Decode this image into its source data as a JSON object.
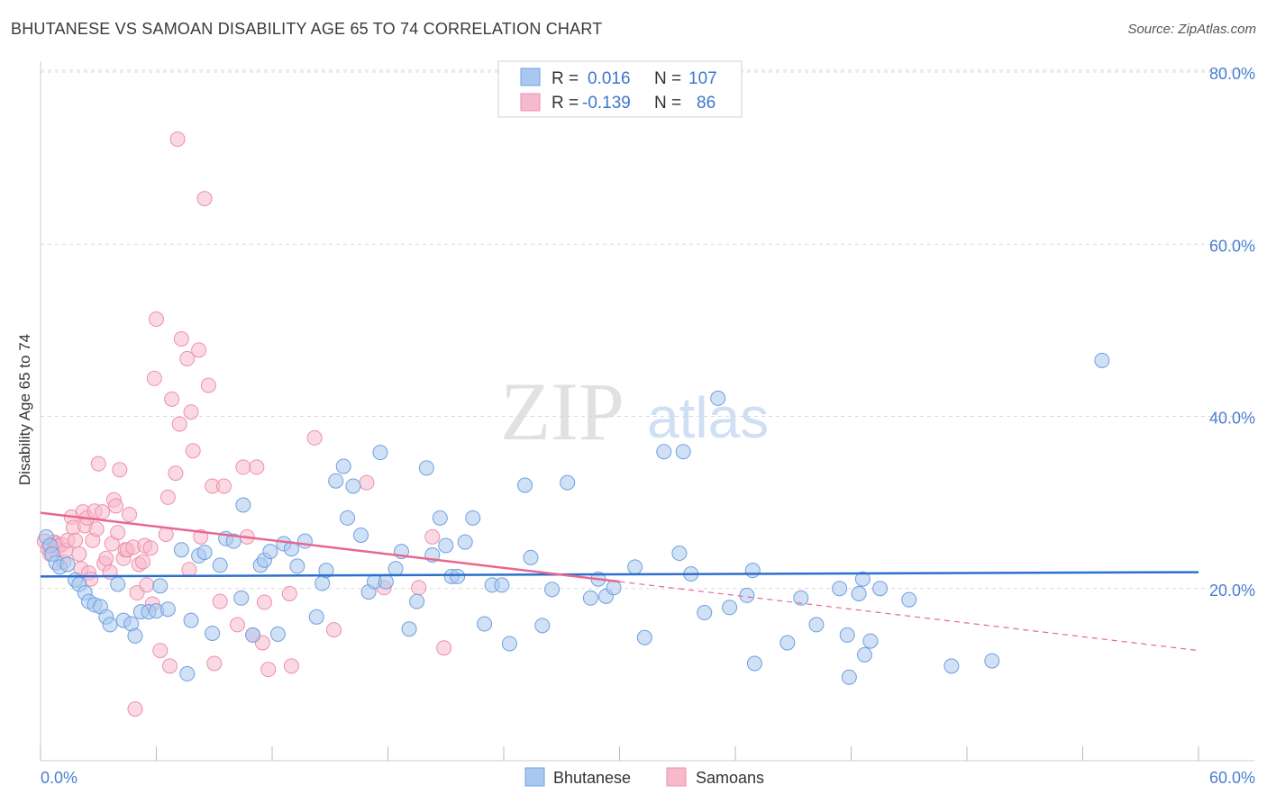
{
  "title": "BHUTANESE VS SAMOAN DISABILITY AGE 65 TO 74 CORRELATION CHART",
  "source": "Source: ZipAtlas.com",
  "watermark": {
    "zip": "ZIP",
    "atlas": "atlas"
  },
  "colors": {
    "bhutanese_fill": "#a9c8ef",
    "bhutanese_stroke": "#6f9fe0",
    "bhutanese_line": "#2c6fcf",
    "samoan_fill": "#f7b9cc",
    "samoan_stroke": "#ee8fac",
    "samoan_line": "#e8678f",
    "axis_label": "#4a7fd0",
    "grid": "#d9d9d9"
  },
  "legend": {
    "rows": [
      {
        "r_label": "R =",
        "r_value": "0.016",
        "n_label": "N =",
        "n_value": "107"
      },
      {
        "r_label": "R =",
        "r_value": "-0.139",
        "n_label": "N =",
        "n_value": "86"
      }
    ]
  },
  "bottom_legend": [
    "Bhutanese",
    "Samoans"
  ],
  "chart_data": {
    "type": "scatter",
    "title": "BHUTANESE VS SAMOAN DISABILITY AGE 65 TO 74 CORRELATION CHART",
    "xlabel": "",
    "ylabel": "Disability Age 65 to 74",
    "xlim": [
      0,
      60
    ],
    "ylim": [
      0,
      80
    ],
    "x_tick_labels": [
      "0.0%",
      "60.0%"
    ],
    "y_tick_labels": [
      "20.0%",
      "40.0%",
      "60.0%",
      "80.0%"
    ],
    "y_ticks": [
      20,
      40,
      60,
      80
    ],
    "grid": "horizontal dashed",
    "legend_position": "top-center",
    "series": [
      {
        "name": "Bhutanese",
        "r": 0.016,
        "n": 107,
        "trend": {
          "x": [
            0,
            60
          ],
          "y": [
            21.4,
            21.9
          ]
        },
        "points": [
          [
            0.3,
            26
          ],
          [
            0.5,
            25
          ],
          [
            0.6,
            24
          ],
          [
            0.8,
            23
          ],
          [
            1,
            22.5
          ],
          [
            1.4,
            22.8
          ],
          [
            1.8,
            21
          ],
          [
            2,
            20.5
          ],
          [
            2.3,
            19.5
          ],
          [
            2.5,
            18.5
          ],
          [
            2.8,
            18.1
          ],
          [
            3.1,
            17.9
          ],
          [
            3.4,
            16.7
          ],
          [
            3.6,
            15.8
          ],
          [
            4,
            20.5
          ],
          [
            4.3,
            16.3
          ],
          [
            4.7,
            15.9
          ],
          [
            4.9,
            14.5
          ],
          [
            5.2,
            17.3
          ],
          [
            5.6,
            17.3
          ],
          [
            6,
            17.4
          ],
          [
            6.2,
            20.3
          ],
          [
            6.6,
            17.6
          ],
          [
            7.3,
            24.5
          ],
          [
            7.6,
            10.1
          ],
          [
            7.8,
            16.3
          ],
          [
            8.2,
            23.8
          ],
          [
            8.5,
            24.2
          ],
          [
            8.9,
            14.8
          ],
          [
            9.3,
            22.7
          ],
          [
            9.6,
            25.8
          ],
          [
            10,
            25.5
          ],
          [
            10.4,
            18.9
          ],
          [
            10.5,
            29.7
          ],
          [
            11,
            14.6
          ],
          [
            11.4,
            22.7
          ],
          [
            11.6,
            23.3
          ],
          [
            11.9,
            24.3
          ],
          [
            12.3,
            14.7
          ],
          [
            12.6,
            25.2
          ],
          [
            13,
            24.6
          ],
          [
            13.3,
            22.6
          ],
          [
            13.7,
            25.5
          ],
          [
            14.3,
            16.7
          ],
          [
            14.6,
            20.6
          ],
          [
            14.8,
            22.1
          ],
          [
            15.3,
            32.5
          ],
          [
            15.7,
            34.2
          ],
          [
            15.9,
            28.2
          ],
          [
            16.2,
            31.9
          ],
          [
            16.6,
            26.2
          ],
          [
            17,
            19.6
          ],
          [
            17.3,
            20.8
          ],
          [
            17.6,
            35.8
          ],
          [
            17.9,
            20.8
          ],
          [
            18.4,
            22.3
          ],
          [
            18.7,
            24.3
          ],
          [
            19.1,
            15.3
          ],
          [
            19.5,
            18.5
          ],
          [
            20,
            34
          ],
          [
            20.3,
            23.9
          ],
          [
            20.7,
            28.2
          ],
          [
            21,
            25
          ],
          [
            21.3,
            21.4
          ],
          [
            21.6,
            21.4
          ],
          [
            22,
            25.4
          ],
          [
            22.4,
            28.2
          ],
          [
            23,
            15.9
          ],
          [
            23.4,
            20.4
          ],
          [
            23.9,
            20.4
          ],
          [
            24.3,
            13.6
          ],
          [
            25.1,
            32
          ],
          [
            25.4,
            23.6
          ],
          [
            26,
            15.7
          ],
          [
            26.5,
            19.9
          ],
          [
            27.3,
            32.3
          ],
          [
            28.5,
            18.9
          ],
          [
            28.9,
            21.1
          ],
          [
            29.3,
            19.1
          ],
          [
            29.7,
            20.1
          ],
          [
            30.8,
            22.5
          ],
          [
            31.3,
            14.3
          ],
          [
            32.3,
            35.9
          ],
          [
            33.1,
            24.1
          ],
          [
            33.3,
            35.9
          ],
          [
            33.7,
            21.7
          ],
          [
            34.4,
            17.2
          ],
          [
            35.1,
            42.1
          ],
          [
            35.7,
            17.8
          ],
          [
            36.6,
            19.2
          ],
          [
            36.9,
            22.1
          ],
          [
            37,
            11.3
          ],
          [
            38.7,
            13.7
          ],
          [
            39.4,
            18.9
          ],
          [
            40.2,
            15.8
          ],
          [
            41.4,
            20
          ],
          [
            41.8,
            14.6
          ],
          [
            41.9,
            9.7
          ],
          [
            42.4,
            19.4
          ],
          [
            42.6,
            21.1
          ],
          [
            42.7,
            12.3
          ],
          [
            43,
            13.9
          ],
          [
            43.5,
            20
          ],
          [
            45,
            18.7
          ],
          [
            47.2,
            11
          ],
          [
            49.3,
            11.6
          ],
          [
            55,
            46.5
          ]
        ]
      },
      {
        "name": "Samoans",
        "r": -0.139,
        "n": 86,
        "trend": {
          "x": [
            0,
            30
          ],
          "y": [
            28.8,
            20.8
          ]
        },
        "trend_dashed": {
          "x": [
            30,
            60
          ],
          "y": [
            20.8,
            12.8
          ]
        },
        "points": [
          [
            0.2,
            25.5
          ],
          [
            0.4,
            24.6
          ],
          [
            0.5,
            24
          ],
          [
            0.7,
            25.4
          ],
          [
            0.8,
            25.2
          ],
          [
            0.9,
            24.9
          ],
          [
            1.1,
            25.1
          ],
          [
            1.2,
            23.1
          ],
          [
            1.3,
            24.4
          ],
          [
            1.4,
            25.6
          ],
          [
            1.6,
            28.3
          ],
          [
            1.7,
            27.1
          ],
          [
            1.8,
            25.6
          ],
          [
            2,
            24
          ],
          [
            2.1,
            22.3
          ],
          [
            2.2,
            28.9
          ],
          [
            2.3,
            27.3
          ],
          [
            2.4,
            28.2
          ],
          [
            2.5,
            21.8
          ],
          [
            2.6,
            21.1
          ],
          [
            2.7,
            25.6
          ],
          [
            2.8,
            29
          ],
          [
            2.9,
            26.9
          ],
          [
            3,
            34.5
          ],
          [
            3.2,
            28.9
          ],
          [
            3.3,
            22.9
          ],
          [
            3.4,
            23.5
          ],
          [
            3.6,
            21.9
          ],
          [
            3.7,
            25.2
          ],
          [
            3.8,
            30.3
          ],
          [
            3.9,
            29.6
          ],
          [
            4,
            26.5
          ],
          [
            4.1,
            33.8
          ],
          [
            4.3,
            23.5
          ],
          [
            4.4,
            24.5
          ],
          [
            4.5,
            24.5
          ],
          [
            4.6,
            28.6
          ],
          [
            4.8,
            24.8
          ],
          [
            4.9,
            6
          ],
          [
            5,
            19.5
          ],
          [
            5.1,
            22.8
          ],
          [
            5.3,
            23.1
          ],
          [
            5.4,
            25
          ],
          [
            5.5,
            20.4
          ],
          [
            5.7,
            24.7
          ],
          [
            5.8,
            18.2
          ],
          [
            5.9,
            44.4
          ],
          [
            6,
            51.3
          ],
          [
            6.2,
            12.8
          ],
          [
            6.5,
            26.3
          ],
          [
            6.6,
            30.6
          ],
          [
            6.7,
            11
          ],
          [
            6.8,
            42
          ],
          [
            7,
            33.4
          ],
          [
            7.1,
            72.2
          ],
          [
            7.2,
            39.1
          ],
          [
            7.3,
            49
          ],
          [
            7.6,
            46.7
          ],
          [
            7.7,
            22.2
          ],
          [
            7.8,
            40.5
          ],
          [
            7.9,
            36
          ],
          [
            8.2,
            47.7
          ],
          [
            8.3,
            26
          ],
          [
            8.5,
            65.3
          ],
          [
            8.7,
            43.6
          ],
          [
            8.9,
            31.9
          ],
          [
            9,
            11.3
          ],
          [
            9.3,
            18.5
          ],
          [
            9.5,
            31.9
          ],
          [
            10.2,
            15.8
          ],
          [
            10.5,
            34.1
          ],
          [
            10.7,
            26
          ],
          [
            11,
            14.6
          ],
          [
            11.2,
            34.1
          ],
          [
            11.5,
            13.7
          ],
          [
            11.6,
            18.4
          ],
          [
            11.8,
            10.6
          ],
          [
            12.9,
            19.4
          ],
          [
            13,
            11
          ],
          [
            14.2,
            37.5
          ],
          [
            15.2,
            15.2
          ],
          [
            16.9,
            32.3
          ],
          [
            17.8,
            20.1
          ],
          [
            19.6,
            20.1
          ],
          [
            20.3,
            26
          ],
          [
            20.9,
            13.1
          ]
        ]
      }
    ]
  }
}
